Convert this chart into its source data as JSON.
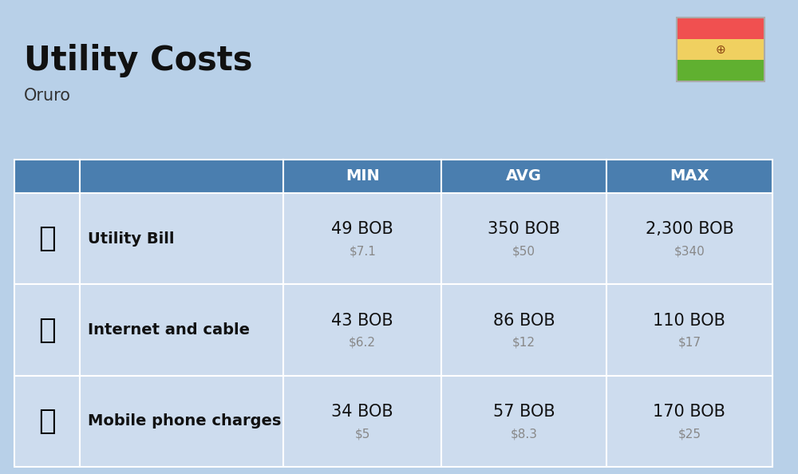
{
  "title": "Utility Costs",
  "subtitle": "Oruro",
  "background_color": "#b8d0e8",
  "header_color": "#4a7eaf",
  "header_text_color": "#ffffff",
  "row_color": "#cddcee",
  "separator_color": "#ffffff",
  "rows": [
    {
      "label": "Utility Bill",
      "min_bob": "49 BOB",
      "min_usd": "$7.1",
      "avg_bob": "350 BOB",
      "avg_usd": "$50",
      "max_bob": "2,300 BOB",
      "max_usd": "$340"
    },
    {
      "label": "Internet and cable",
      "min_bob": "43 BOB",
      "min_usd": "$6.2",
      "avg_bob": "86 BOB",
      "avg_usd": "$12",
      "max_bob": "110 BOB",
      "max_usd": "$17"
    },
    {
      "label": "Mobile phone charges",
      "min_bob": "34 BOB",
      "min_usd": "$5",
      "avg_bob": "57 BOB",
      "avg_usd": "$8.3",
      "max_bob": "170 BOB",
      "max_usd": "$25"
    }
  ],
  "flag_red": "#F05050",
  "flag_yellow": "#F0D060",
  "flag_green": "#60B030",
  "title_fontsize": 30,
  "subtitle_fontsize": 15,
  "header_fontsize": 14,
  "cell_bob_fontsize": 15,
  "cell_usd_fontsize": 11,
  "label_fontsize": 14
}
